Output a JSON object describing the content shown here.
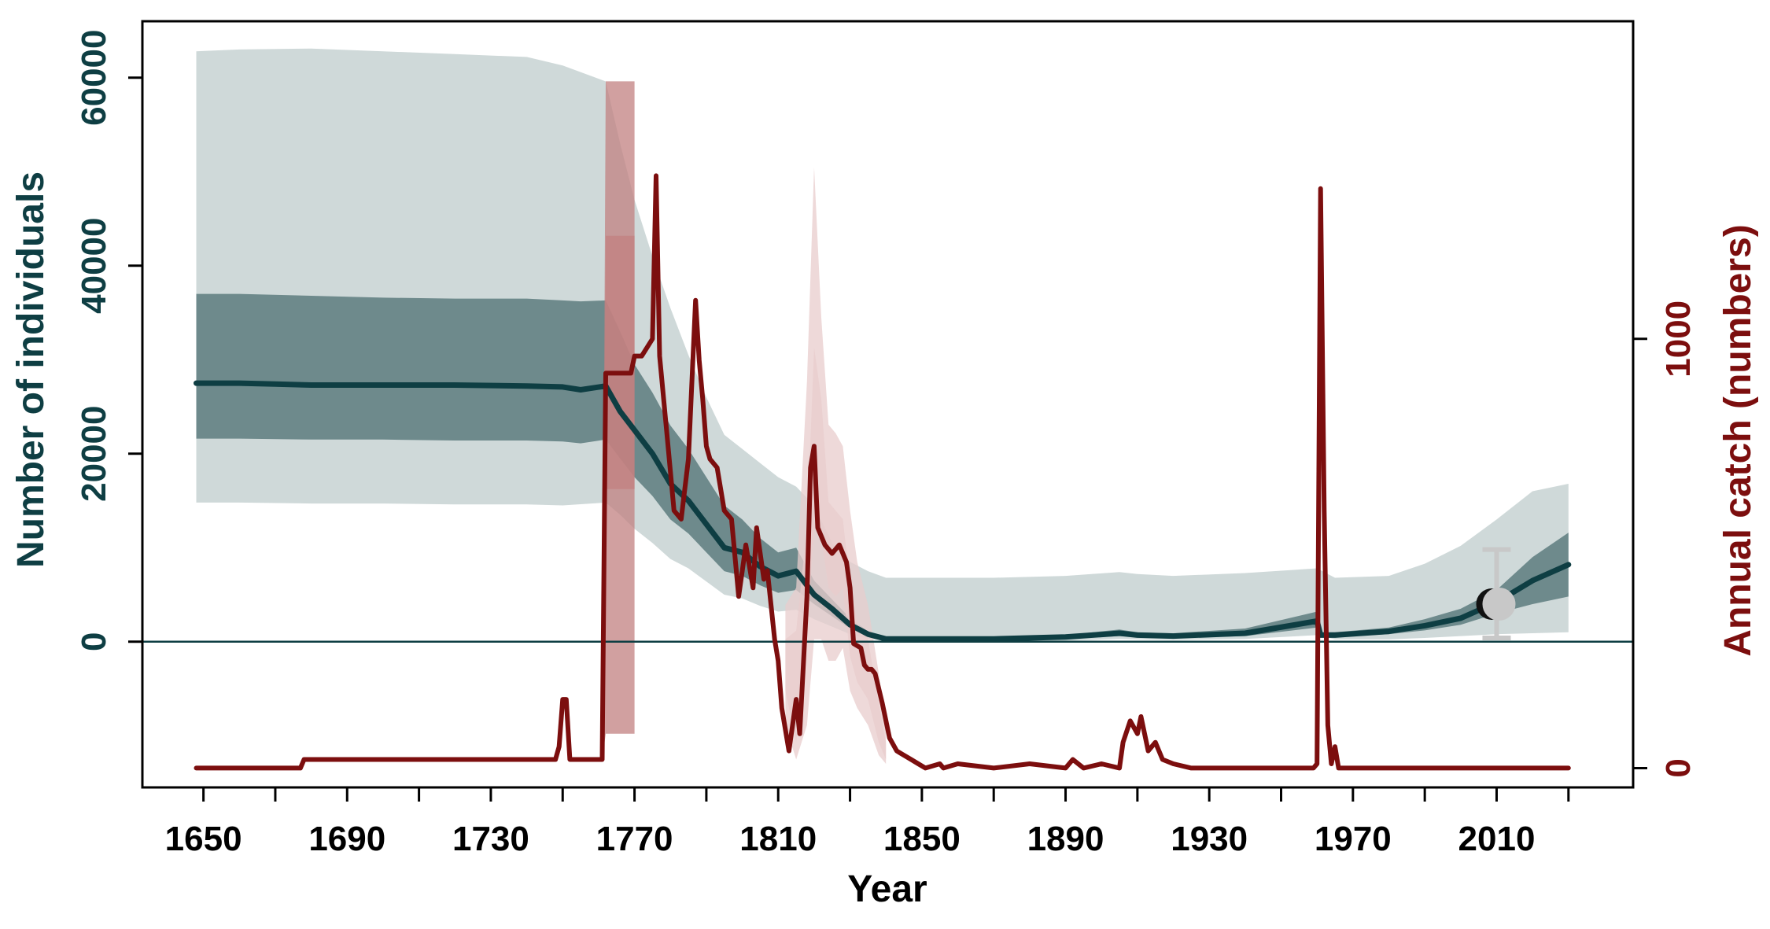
{
  "chart_data": {
    "type": "line",
    "title": "",
    "xlabel": "Year",
    "ylabel": "Number of individuals",
    "ylabel_right": "Annual catch (numbers)",
    "xlim": [
      1633,
      2048
    ],
    "ylim": [
      -15500,
      66000
    ],
    "ylim_right": [
      -45,
      1740
    ],
    "x_ticks": [
      1650,
      1690,
      1730,
      1770,
      1810,
      1850,
      1890,
      1930,
      1970,
      2010
    ],
    "x_minor_ticks": [
      1670,
      1710,
      1750,
      1790,
      1830,
      1870,
      1910,
      1950,
      1990,
      2030
    ],
    "y_ticks": [
      0,
      20000,
      40000,
      60000
    ],
    "y_ticks_right": [
      0,
      1000
    ],
    "grid": false,
    "legend": "none",
    "colors": {
      "population_line": "#0e3e43",
      "population_band_inner": "#6e8a8c",
      "population_band_outer": "#cfd9d9",
      "catch_line": "#7c0e0e",
      "catch_band": "#c18080",
      "catch_band_outer": "#e8cccc",
      "estimate_point": "#c8c8c8",
      "left_axis_text": "#0e3e43",
      "right_axis_text": "#7c0e0e"
    },
    "series": [
      {
        "axis": "left",
        "type": "line",
        "x": [
          1648,
          1660,
          1670,
          1680,
          1700,
          1720,
          1740,
          1750,
          1755,
          1762,
          1766,
          1770,
          1775,
          1780,
          1785,
          1790,
          1795,
          1800,
          1805,
          1810,
          1815,
          1820,
          1825,
          1830,
          1835,
          1840,
          1850,
          1870,
          1890,
          1905,
          1910,
          1920,
          1940,
          1960,
          1961,
          1965,
          1980,
          1990,
          2000,
          2010,
          2020,
          2030
        ],
        "values": [
          27500,
          27500,
          27400,
          27300,
          27300,
          27300,
          27200,
          27100,
          26800,
          27200,
          24500,
          22500,
          20000,
          16800,
          15000,
          12500,
          10000,
          9500,
          8000,
          7000,
          7500,
          5000,
          3500,
          1800,
          800,
          300,
          300,
          300,
          500,
          900,
          700,
          600,
          900,
          2200,
          700,
          700,
          1100,
          1700,
          2500,
          4200,
          6500,
          8200
        ]
      },
      {
        "axis": "left",
        "type": "band",
        "x": [
          1648,
          1660,
          1680,
          1700,
          1720,
          1740,
          1750,
          1755,
          1762,
          1766,
          1770,
          1775,
          1780,
          1785,
          1790,
          1795,
          1800,
          1805,
          1810,
          1815,
          1820,
          1825,
          1830,
          1835,
          1840,
          1850,
          1870,
          1890,
          1905,
          1910,
          1920,
          1940,
          1960,
          1961,
          1965,
          1980,
          1990,
          2000,
          2010,
          2020,
          2030
        ],
        "lower": [
          21600,
          21600,
          21500,
          21500,
          21400,
          21400,
          21300,
          21100,
          21500,
          19500,
          17500,
          15500,
          13000,
          11500,
          9500,
          7500,
          7000,
          6000,
          5200,
          5500,
          4000,
          2700,
          1400,
          600,
          200,
          200,
          200,
          300,
          600,
          500,
          400,
          600,
          1500,
          500,
          500,
          800,
          1200,
          1800,
          3000,
          4000,
          4800
        ],
        "upper": [
          37000,
          37000,
          36800,
          36600,
          36500,
          36500,
          36300,
          36200,
          36300,
          33000,
          29500,
          26500,
          23000,
          20500,
          17500,
          14500,
          13000,
          11000,
          9500,
          10000,
          6500,
          4500,
          2500,
          1100,
          400,
          400,
          400,
          700,
          1300,
          1000,
          900,
          1400,
          3200,
          1000,
          1000,
          1500,
          2400,
          3500,
          5500,
          9000,
          11600
        ]
      },
      {
        "axis": "left",
        "type": "band",
        "x": [
          1648,
          1660,
          1680,
          1700,
          1720,
          1740,
          1750,
          1762,
          1766,
          1770,
          1775,
          1780,
          1785,
          1790,
          1795,
          1800,
          1805,
          1810,
          1815,
          1820,
          1825,
          1830,
          1835,
          1840,
          1850,
          1870,
          1890,
          1905,
          1910,
          1920,
          1940,
          1960,
          1965,
          1980,
          1990,
          2000,
          2010,
          2020,
          2030
        ],
        "lower": [
          14800,
          14800,
          14700,
          14700,
          14600,
          14600,
          14500,
          14800,
          13500,
          12000,
          10500,
          8800,
          7800,
          6400,
          5000,
          4600,
          3800,
          3200,
          3400,
          2400,
          1600,
          800,
          300,
          100,
          100,
          100,
          100,
          300,
          250,
          200,
          300,
          700,
          250,
          250,
          400,
          600,
          800,
          900,
          1000
        ],
        "upper": [
          62800,
          63000,
          63100,
          62800,
          62500,
          62200,
          61300,
          59600,
          53000,
          47000,
          41000,
          35500,
          30500,
          26000,
          22000,
          20500,
          19000,
          17500,
          16500,
          14500,
          10500,
          8500,
          7500,
          6800,
          6800,
          6800,
          7000,
          7400,
          7200,
          7000,
          7300,
          7800,
          6800,
          7000,
          8300,
          10200,
          13000,
          16000,
          16800
        ]
      },
      {
        "axis": "right",
        "type": "line",
        "x": [
          1648,
          1677,
          1678,
          1748,
          1749,
          1750,
          1751,
          1752,
          1761,
          1762,
          1769,
          1770,
          1772,
          1775,
          1776,
          1777,
          1779,
          1781,
          1783,
          1785,
          1787,
          1788,
          1789,
          1790,
          1791,
          1793,
          1795,
          1797,
          1799,
          1800,
          1801,
          1803,
          1804,
          1806,
          1807,
          1809,
          1810,
          1811,
          1813,
          1815,
          1816,
          1818,
          1819,
          1820,
          1821,
          1823,
          1825,
          1827,
          1829,
          1830,
          1831,
          1833,
          1834,
          1835,
          1836,
          1837,
          1839,
          1841,
          1843,
          1845,
          1847,
          1849,
          1851,
          1855,
          1856,
          1860,
          1870,
          1880,
          1890,
          1892,
          1895,
          1900,
          1905,
          1906,
          1908,
          1910,
          1911,
          1913,
          1915,
          1917,
          1920,
          1925,
          1930,
          1935,
          1940,
          1950,
          1955,
          1959,
          1960,
          1961,
          1962,
          1963,
          1964,
          1965,
          1966,
          1967,
          2030
        ],
        "values": [
          0,
          0,
          20,
          20,
          50,
          160,
          160,
          20,
          20,
          920,
          920,
          960,
          960,
          1000,
          1380,
          960,
          780,
          600,
          580,
          720,
          1090,
          950,
          860,
          750,
          720,
          700,
          600,
          580,
          400,
          460,
          520,
          420,
          560,
          440,
          460,
          300,
          250,
          140,
          40,
          160,
          80,
          400,
          700,
          750,
          560,
          520,
          500,
          520,
          480,
          420,
          290,
          280,
          240,
          230,
          230,
          220,
          150,
          70,
          40,
          30,
          20,
          10,
          0,
          10,
          0,
          10,
          0,
          10,
          0,
          20,
          0,
          10,
          0,
          60,
          110,
          80,
          120,
          40,
          60,
          20,
          10,
          0,
          0,
          0,
          0,
          0,
          0,
          0,
          10,
          1350,
          600,
          100,
          10,
          50,
          0,
          0,
          0
        ]
      },
      {
        "axis": "right",
        "type": "band",
        "x": [
          1761,
          1762,
          1769,
          1770
        ],
        "lower": [
          20,
          650,
          650,
          650
        ],
        "upper": [
          20,
          1240,
          1240,
          1240
        ]
      },
      {
        "axis": "right",
        "type": "band",
        "x": [
          1761,
          1762,
          1769,
          1770
        ],
        "lower": [
          20,
          80,
          80,
          80
        ],
        "upper": [
          20,
          1600,
          1600,
          1600
        ]
      },
      {
        "axis": "right",
        "type": "band",
        "x": [
          1812,
          1815,
          1818,
          1820,
          1822,
          1824,
          1826,
          1828,
          1830,
          1832,
          1835,
          1838,
          1840
        ],
        "lower": [
          180,
          60,
          300,
          560,
          540,
          420,
          400,
          420,
          260,
          200,
          160,
          60,
          20
        ],
        "upper": [
          300,
          320,
          560,
          980,
          860,
          620,
          600,
          580,
          430,
          340,
          300,
          150,
          60
        ]
      },
      {
        "axis": "right",
        "type": "band",
        "x": [
          1812,
          1815,
          1818,
          1820,
          1822,
          1824,
          1826,
          1828,
          1830,
          1832,
          1835,
          1838,
          1840
        ],
        "lower": [
          100,
          20,
          100,
          300,
          300,
          250,
          250,
          280,
          180,
          140,
          100,
          30,
          10
        ],
        "upper": [
          380,
          420,
          900,
          1400,
          1050,
          800,
          780,
          750,
          600,
          480,
          380,
          220,
          100
        ]
      },
      {
        "axis": "left",
        "type": "point",
        "x": 2010,
        "y": 4000,
        "lower": 400,
        "upper": 9800
      }
    ]
  }
}
